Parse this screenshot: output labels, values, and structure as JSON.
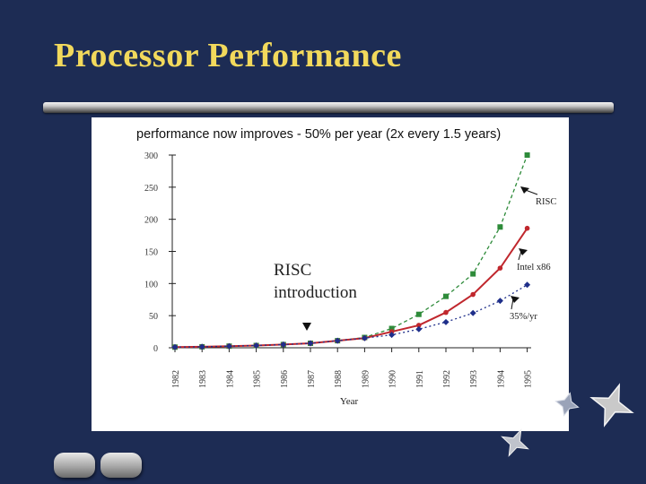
{
  "slide": {
    "title": "Processor Performance"
  },
  "chart_data": {
    "type": "line",
    "title": "performance now improves - 50% per year (2x every 1.5 years)",
    "xlabel": "Year",
    "ylabel": "",
    "ylim": [
      0,
      300
    ],
    "yticks": [
      0,
      50,
      100,
      150,
      200,
      250,
      300
    ],
    "categories": [
      "1982",
      "1983",
      "1984",
      "1985",
      "1986",
      "1987",
      "1988",
      "1989",
      "1990",
      "1991",
      "1992",
      "1993",
      "1994",
      "1995"
    ],
    "grid": false,
    "series": [
      {
        "name": "RISC",
        "style": "dashed",
        "marker": "square",
        "color": "#2e8b3a",
        "values": [
          1,
          1.5,
          2.5,
          3.5,
          5,
          7,
          11,
          16,
          30,
          52,
          80,
          115,
          188,
          300
        ]
      },
      {
        "name": "Intel x86",
        "style": "solid",
        "marker": "circle",
        "color": "#c0272d",
        "values": [
          1,
          1.5,
          2.5,
          3.5,
          5,
          7,
          11,
          15,
          25,
          35,
          55,
          83,
          124,
          186
        ]
      },
      {
        "name": "35%/yr",
        "style": "dotted",
        "marker": "diamond",
        "color": "#1f2f8a",
        "values": [
          1,
          1.5,
          2.5,
          3.5,
          5,
          7,
          11,
          15,
          20,
          29,
          40,
          54,
          73,
          98
        ]
      }
    ],
    "annotations": [
      {
        "text_lines": [
          "RISC",
          "introduction"
        ],
        "marker_year": "1987"
      }
    ]
  }
}
